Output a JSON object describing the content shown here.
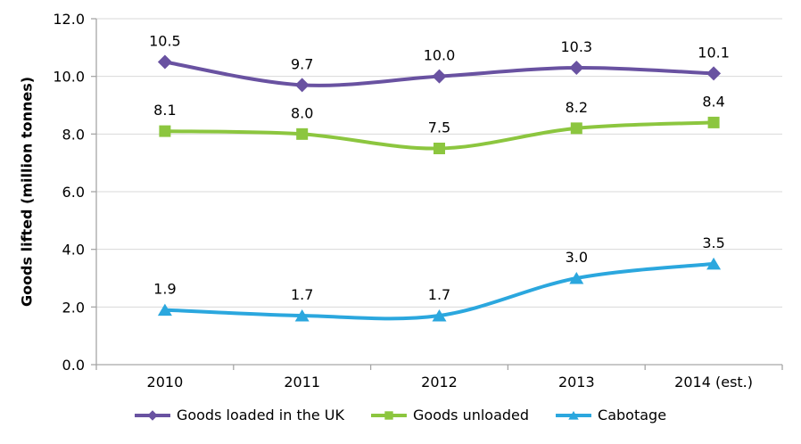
{
  "chart_data": {
    "type": "line",
    "title": "",
    "xlabel": "",
    "ylabel": "Goods lifted (million tonnes)",
    "categories": [
      "2010",
      "2011",
      "2012",
      "2013",
      "2014 (est.)"
    ],
    "ylim": [
      0.0,
      12.0
    ],
    "ytick_step": 2.0,
    "ytick_decimals": 1,
    "grid": "horizontal",
    "line_style": "smoothed",
    "legend_position": "bottom",
    "series": [
      {
        "name": "Goods loaded in the UK",
        "marker": "diamond",
        "color": "#6952A1",
        "values": [
          10.5,
          9.7,
          10.0,
          10.3,
          10.1
        ],
        "data_labels": [
          "10.5",
          "9.7",
          "10.0",
          "10.3",
          "10.1"
        ]
      },
      {
        "name": "Goods unloaded",
        "marker": "square",
        "color": "#8CC63F",
        "values": [
          8.1,
          8.0,
          7.5,
          8.2,
          8.4
        ],
        "data_labels": [
          "8.1",
          "8.0",
          "7.5",
          "8.2",
          "8.4"
        ]
      },
      {
        "name": "Cabotage",
        "marker": "triangle",
        "color": "#2BA7DE",
        "values": [
          1.9,
          1.7,
          1.7,
          3.0,
          3.5
        ],
        "data_labels": [
          "1.9",
          "1.7",
          "1.7",
          "3.0",
          "3.5"
        ]
      }
    ],
    "colors": {
      "gridline": "#D9D9D9",
      "axis": "#A6A6A6",
      "text": "#000000",
      "background": "#FFFFFF"
    }
  }
}
